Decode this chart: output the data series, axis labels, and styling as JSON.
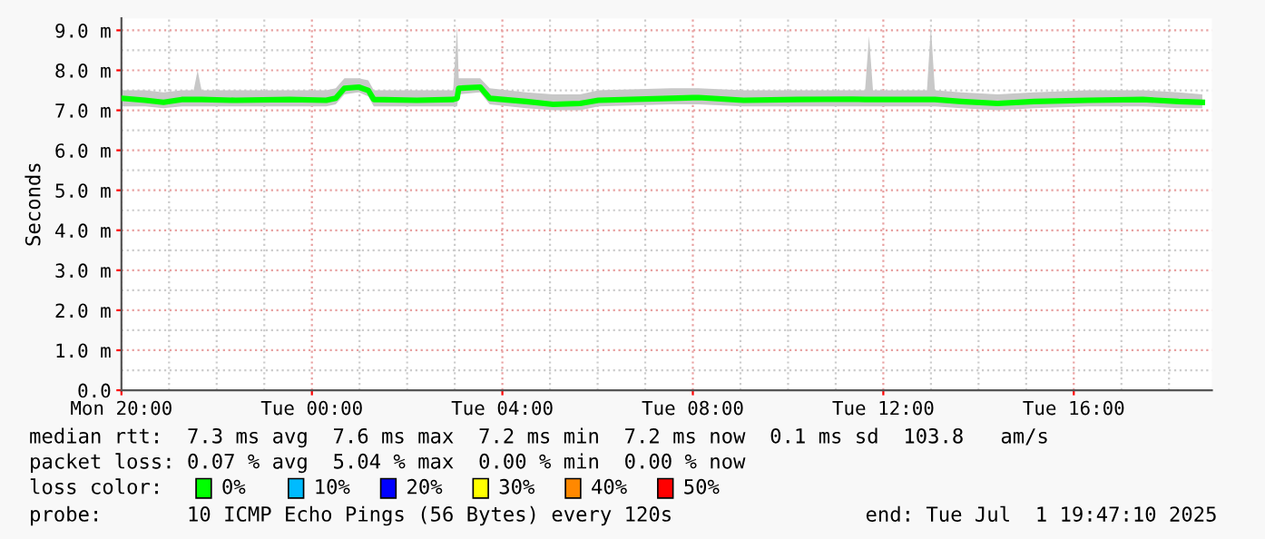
{
  "chart_data": {
    "type": "line",
    "ylabel": "Seconds",
    "xlim": [
      "2025-06-30T20:00",
      "2025-07-01T18:54"
    ],
    "ylim": [
      0,
      9.3
    ],
    "xticks": [
      {
        "value": "2025-06-30T20:00",
        "label": "Mon 20:00"
      },
      {
        "value": "2025-07-01T00:00",
        "label": "Tue 00:00"
      },
      {
        "value": "2025-07-01T04:00",
        "label": "Tue 04:00"
      },
      {
        "value": "2025-07-01T08:00",
        "label": "Tue 08:00"
      },
      {
        "value": "2025-07-01T12:00",
        "label": "Tue 12:00"
      },
      {
        "value": "2025-07-01T16:00",
        "label": "Tue 16:00"
      }
    ],
    "yticks": [
      {
        "value": 0,
        "label": "0.0"
      },
      {
        "value": 1,
        "label": "1.0 m"
      },
      {
        "value": 2,
        "label": "2.0 m"
      },
      {
        "value": 3,
        "label": "3.0 m"
      },
      {
        "value": 4,
        "label": "4.0 m"
      },
      {
        "value": 5,
        "label": "5.0 m"
      },
      {
        "value": 6,
        "label": "6.0 m"
      },
      {
        "value": 7,
        "label": "7.0 m"
      },
      {
        "value": 8,
        "label": "8.0 m"
      },
      {
        "value": 9,
        "label": "9.0 m"
      }
    ],
    "grid": true,
    "legend": "bottom",
    "legend_title": "loss color:",
    "marker": "none",
    "line_style": "solid",
    "series": [
      {
        "name": "0%",
        "color": "#00ff00",
        "x": [
          "2025-06-30T20:00",
          "2025-06-30T20:30",
          "2025-06-30T20:53",
          "2025-06-30T21:16",
          "2025-06-30T21:31",
          "2025-06-30T21:36",
          "2025-06-30T21:41",
          "2025-06-30T22:24",
          "2025-06-30T23:32",
          "2025-07-01T00:18",
          "2025-07-01T00:30",
          "2025-07-01T00:41",
          "2025-07-01T00:59",
          "2025-07-01T01:11",
          "2025-07-01T01:18",
          "2025-07-01T02:12",
          "2025-07-01T02:58",
          "2025-07-01T03:03",
          "2025-07-01T03:05",
          "2025-07-01T03:32",
          "2025-07-01T03:44",
          "2025-07-01T04:30",
          "2025-07-01T05:04",
          "2025-07-01T05:38",
          "2025-07-01T06:01",
          "2025-07-01T07:32",
          "2025-07-01T08:07",
          "2025-07-01T09:04",
          "2025-07-01T10:12",
          "2025-07-01T11:21",
          "2025-07-01T11:37",
          "2025-07-01T11:42",
          "2025-07-01T11:47",
          "2025-07-01T12:30",
          "2025-07-01T12:55",
          "2025-07-01T13:00",
          "2025-07-01T13:05",
          "2025-07-01T13:38",
          "2025-07-01T14:24",
          "2025-07-01T15:10",
          "2025-07-01T16:18",
          "2025-07-01T17:27",
          "2025-07-01T18:12",
          "2025-07-01T18:42"
        ],
        "values": [
          7.3,
          7.25,
          7.2,
          7.27,
          7.27,
          7.27,
          7.27,
          7.25,
          7.27,
          7.25,
          7.3,
          7.55,
          7.58,
          7.5,
          7.27,
          7.25,
          7.27,
          7.3,
          7.55,
          7.58,
          7.3,
          7.22,
          7.15,
          7.17,
          7.25,
          7.3,
          7.32,
          7.25,
          7.27,
          7.28,
          7.27,
          7.27,
          7.27,
          7.27,
          7.27,
          7.27,
          7.27,
          7.22,
          7.17,
          7.22,
          7.25,
          7.27,
          7.22,
          7.2
        ],
        "lower": [
          7.1,
          7.1,
          7.05,
          7.1,
          7.1,
          7.1,
          7.1,
          7.1,
          7.1,
          7.1,
          7.15,
          7.4,
          7.45,
          7.35,
          7.1,
          7.1,
          7.1,
          7.1,
          7.4,
          7.45,
          7.15,
          7.05,
          7.0,
          7.0,
          7.1,
          7.15,
          7.15,
          7.1,
          7.1,
          7.1,
          7.1,
          7.1,
          7.1,
          7.1,
          7.1,
          7.1,
          7.1,
          7.05,
          7.0,
          7.05,
          7.1,
          7.1,
          7.05,
          7.05
        ],
        "upper": [
          7.5,
          7.5,
          7.45,
          7.5,
          7.5,
          8.0,
          7.5,
          7.5,
          7.5,
          7.5,
          7.55,
          7.8,
          7.8,
          7.75,
          7.5,
          7.5,
          7.5,
          9.1,
          7.8,
          7.8,
          7.55,
          7.45,
          7.4,
          7.4,
          7.5,
          7.55,
          7.55,
          7.5,
          7.5,
          7.5,
          7.5,
          8.86,
          7.5,
          7.5,
          7.5,
          9.1,
          7.5,
          7.45,
          7.4,
          7.45,
          7.5,
          7.5,
          7.45,
          7.4
        ]
      },
      {
        "name": "10%",
        "color": "#00bbff"
      },
      {
        "name": "20%",
        "color": "#0000ff"
      },
      {
        "name": "30%",
        "color": "#ffff00"
      },
      {
        "name": "40%",
        "color": "#ff8800"
      },
      {
        "name": "50%",
        "color": "#ff0000"
      }
    ],
    "annotations": [
      "median rtt:  7.3 ms avg  7.6 ms max  7.2 ms min  7.2 ms now  0.1 ms sd  103.8   am/s",
      "packet loss: 0.07 % avg  5.04 % max  0.00 % min  0.00 % now",
      "probe:       10 ICMP Echo Pings (56 Bytes) every 120s",
      "end: Tue Jul  1 19:47:10 2025"
    ]
  }
}
